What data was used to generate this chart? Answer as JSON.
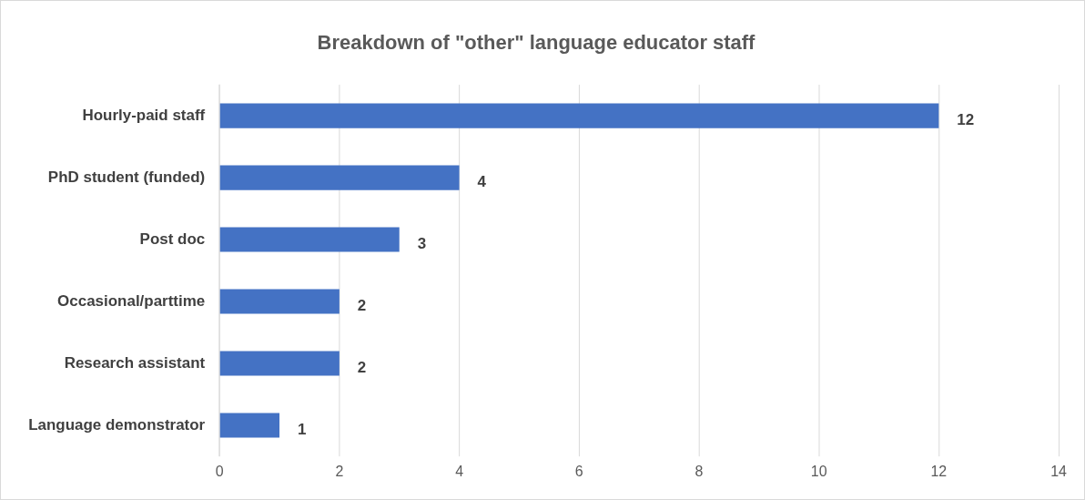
{
  "chart_data": {
    "type": "bar",
    "orientation": "horizontal",
    "title": "Breakdown of \"other\" language educator staff",
    "categories": [
      "Hourly-paid staff",
      "PhD student (funded)",
      "Post doc",
      "Occasional/parttime",
      "Research assistant",
      "Language demonstrator"
    ],
    "values": [
      12,
      4,
      3,
      2,
      2,
      1
    ],
    "color": "#4472c4",
    "xlim": [
      0,
      14
    ],
    "xticks": [
      0,
      2,
      4,
      6,
      8,
      10,
      12,
      14
    ],
    "grid": "x",
    "data_labels": true,
    "legend": false
  }
}
